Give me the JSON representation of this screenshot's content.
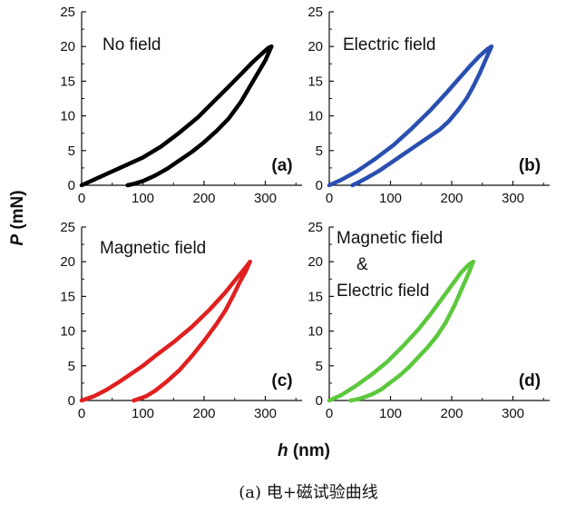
{
  "figure": {
    "caption": "(a) 电+磁试验曲线",
    "ylabel_sym": "P",
    "ylabel_unit": " (mN)",
    "xlabel_sym": "h",
    "xlabel_unit": " (nm)"
  },
  "chart_data": [
    {
      "type": "line",
      "panel": "(a)",
      "annotation": [
        "No field"
      ],
      "color": "#000000",
      "xlim": [
        0,
        360
      ],
      "ylim": [
        0,
        25
      ],
      "xticks": [
        0,
        100,
        200,
        300
      ],
      "yticks": [
        0,
        5,
        10,
        15,
        20,
        25
      ],
      "series": [
        {
          "values_x": [
            0,
            30,
            60,
            100,
            130,
            160,
            190,
            215,
            240,
            260,
            280,
            295,
            305,
            310
          ],
          "values_y": [
            0,
            1.2,
            2.4,
            4.0,
            5.6,
            7.6,
            9.8,
            12.0,
            14.2,
            16.0,
            17.8,
            19.0,
            19.8,
            20
          ]
        },
        {
          "values_x": [
            310,
            300,
            280,
            260,
            240,
            220,
            200,
            180,
            160,
            140,
            120,
            100,
            85,
            75
          ],
          "values_y": [
            20,
            18.0,
            15.0,
            12.0,
            9.6,
            7.8,
            6.2,
            4.8,
            3.6,
            2.4,
            1.4,
            0.6,
            0.2,
            0
          ]
        }
      ]
    },
    {
      "type": "line",
      "panel": "(b)",
      "annotation": [
        "Electric field"
      ],
      "color": "#2a4fb0",
      "xlim": [
        0,
        360
      ],
      "ylim": [
        0,
        25
      ],
      "xticks": [
        0,
        100,
        200,
        300
      ],
      "yticks": [
        0,
        5,
        10,
        15,
        20,
        25
      ],
      "series": [
        {
          "values_x": [
            0,
            20,
            45,
            75,
            105,
            135,
            165,
            190,
            210,
            230,
            245,
            258,
            265
          ],
          "values_y": [
            0,
            0.8,
            2.0,
            3.8,
            5.8,
            8.2,
            10.8,
            13.2,
            15.2,
            17.2,
            18.6,
            19.6,
            20
          ]
        },
        {
          "values_x": [
            265,
            255,
            245,
            235,
            225,
            210,
            195,
            180,
            160,
            140,
            120,
            100,
            80,
            60,
            45,
            38
          ],
          "values_y": [
            20,
            18.0,
            16.0,
            14.2,
            12.6,
            10.8,
            9.2,
            8.0,
            6.8,
            5.6,
            4.4,
            3.2,
            2.0,
            1.0,
            0.3,
            0
          ]
        }
      ]
    },
    {
      "type": "line",
      "panel": "(c)",
      "annotation": [
        "Magnetic field"
      ],
      "color": "#e02020",
      "xlim": [
        0,
        360
      ],
      "ylim": [
        0,
        25
      ],
      "xticks": [
        0,
        100,
        200,
        300
      ],
      "yticks": [
        0,
        5,
        10,
        15,
        20,
        25
      ],
      "series": [
        {
          "values_x": [
            0,
            20,
            40,
            60,
            80,
            100,
            120,
            150,
            180,
            210,
            235,
            255,
            268,
            275
          ],
          "values_y": [
            0,
            0.6,
            1.5,
            2.6,
            3.8,
            5.0,
            6.4,
            8.4,
            10.6,
            13.2,
            15.6,
            17.8,
            19.2,
            20
          ]
        },
        {
          "values_x": [
            275,
            268,
            258,
            248,
            235,
            220,
            200,
            180,
            160,
            140,
            120,
            105,
            92,
            85
          ],
          "values_y": [
            20,
            18.6,
            17.0,
            15.2,
            13.0,
            11.0,
            8.6,
            6.4,
            4.4,
            2.8,
            1.4,
            0.6,
            0.2,
            0
          ]
        }
      ]
    },
    {
      "type": "line",
      "panel": "(d)",
      "annotation": [
        "Magnetic field",
        "&",
        "Electric field"
      ],
      "color": "#5cc83c",
      "xlim": [
        0,
        360
      ],
      "ylim": [
        0,
        25
      ],
      "xticks": [
        0,
        100,
        200,
        300
      ],
      "yticks": [
        0,
        5,
        10,
        15,
        20,
        25
      ],
      "series": [
        {
          "values_x": [
            0,
            20,
            45,
            70,
            95,
            120,
            145,
            165,
            185,
            200,
            215,
            228,
            235
          ],
          "values_y": [
            0,
            0.8,
            2.2,
            3.8,
            5.6,
            7.8,
            10.2,
            12.4,
            14.8,
            16.6,
            18.4,
            19.6,
            20
          ]
        },
        {
          "values_x": [
            235,
            228,
            218,
            205,
            190,
            175,
            160,
            145,
            130,
            115,
            100,
            85,
            70,
            55,
            42,
            35
          ],
          "values_y": [
            20,
            18.4,
            16.4,
            13.8,
            11.2,
            9.2,
            7.6,
            6.2,
            4.8,
            3.6,
            2.6,
            1.6,
            0.9,
            0.4,
            0.1,
            0
          ]
        }
      ]
    }
  ]
}
